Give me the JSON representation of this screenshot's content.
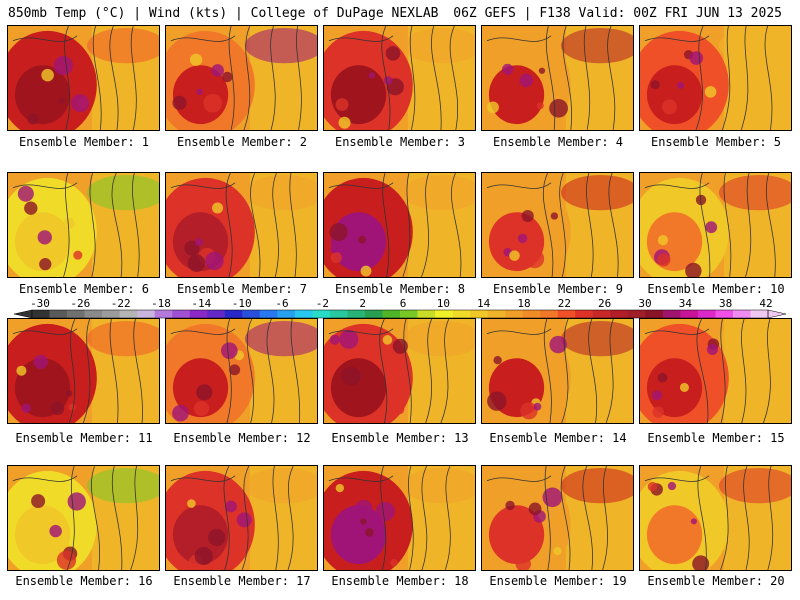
{
  "header": {
    "left_title": "850mb Temp (°C) | Wind (kts) | College of DuPage NEXLAB",
    "right_title": "06Z GEFS | F138 Valid: 00Z FRI JUN 13 2025"
  },
  "members": [
    {
      "label": "Ensemble Member: 1"
    },
    {
      "label": "Ensemble Member: 2"
    },
    {
      "label": "Ensemble Member: 3"
    },
    {
      "label": "Ensemble Member: 4"
    },
    {
      "label": "Ensemble Member: 5"
    },
    {
      "label": "Ensemble Member: 6"
    },
    {
      "label": "Ensemble Member: 7"
    },
    {
      "label": "Ensemble Member: 8"
    },
    {
      "label": "Ensemble Member: 9"
    },
    {
      "label": "Ensemble Member: 10"
    },
    {
      "label": "Ensemble Member: 11"
    },
    {
      "label": "Ensemble Member: 12"
    },
    {
      "label": "Ensemble Member: 13"
    },
    {
      "label": "Ensemble Member: 14"
    },
    {
      "label": "Ensemble Member: 15"
    },
    {
      "label": "Ensemble Member: 16"
    },
    {
      "label": "Ensemble Member: 17"
    },
    {
      "label": "Ensemble Member: 18"
    },
    {
      "label": "Ensemble Member: 19"
    },
    {
      "label": "Ensemble Member: 20"
    }
  ],
  "colorbar": {
    "tick_labels": [
      "-30",
      "-26",
      "-22",
      "-18",
      "-14",
      "-10",
      "-6",
      "-2",
      "2",
      "6",
      "10",
      "14",
      "18",
      "22",
      "26",
      "30",
      "34",
      "38",
      "42"
    ],
    "colors": [
      "#333333",
      "#5a5a5a",
      "#707070",
      "#8a8a8a",
      "#9c9c9c",
      "#b4b4b4",
      "#c8b4dc",
      "#b478dc",
      "#a050d2",
      "#8c28c8",
      "#6428c8",
      "#2828c8",
      "#2850dc",
      "#2878f0",
      "#28a0f0",
      "#28c8f0",
      "#28dcc8",
      "#28c8a0",
      "#28b478",
      "#28a050",
      "#50b428",
      "#78c828",
      "#c8dc28",
      "#f0f028",
      "#f0dc28",
      "#f0c828",
      "#f0b428",
      "#f0a028",
      "#f08c28",
      "#f07828",
      "#f05028",
      "#dc3228",
      "#c82828",
      "#b41e28",
      "#a01e28",
      "#8c1428",
      "#a0146e",
      "#c81496",
      "#dc28c8",
      "#f050e6",
      "#f08cf0",
      "#f0c8f0"
    ]
  }
}
